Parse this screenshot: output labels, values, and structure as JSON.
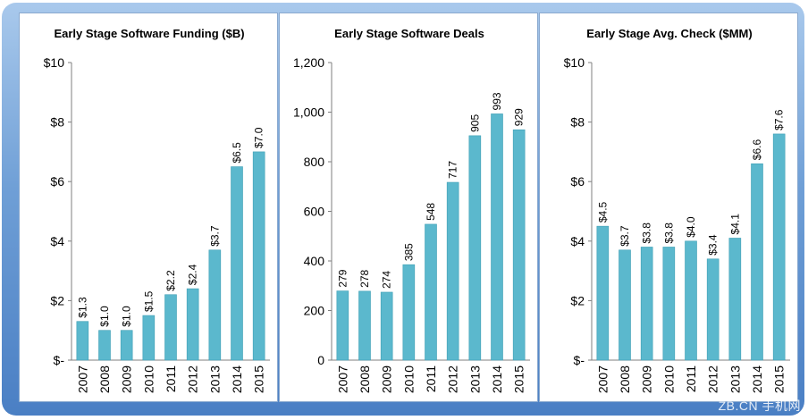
{
  "chart_data": [
    {
      "type": "bar",
      "title": "Early Stage Software Funding ($B)",
      "categories": [
        "2007",
        "2008",
        "2009",
        "2010",
        "2011",
        "2012",
        "2013",
        "2014",
        "2015"
      ],
      "values": [
        1.3,
        1.0,
        1.0,
        1.5,
        2.2,
        2.4,
        3.7,
        6.5,
        7.0
      ],
      "labels": [
        "$1.3",
        "$1.0",
        "$1.0",
        "$1.5",
        "$2.2",
        "$2.4",
        "$3.7",
        "$6.5",
        "$7.0"
      ],
      "ylim": [
        0,
        10
      ],
      "yticks": [
        0,
        2,
        4,
        6,
        8,
        10
      ],
      "ytick_labels": [
        "$-",
        "$2",
        "$4",
        "$6",
        "$8",
        "$10"
      ],
      "grid": false,
      "bar_color": "#5bb8cd"
    },
    {
      "type": "bar",
      "title": "Early Stage Software Deals",
      "categories": [
        "2007",
        "2008",
        "2009",
        "2010",
        "2011",
        "2012",
        "2013",
        "2014",
        "2015"
      ],
      "values": [
        279,
        278,
        274,
        385,
        548,
        717,
        905,
        993,
        929
      ],
      "labels": [
        "279",
        "278",
        "274",
        "385",
        "548",
        "717",
        "905",
        "993",
        "929"
      ],
      "ylim": [
        0,
        1200
      ],
      "yticks": [
        0,
        200,
        400,
        600,
        800,
        1000,
        1200
      ],
      "ytick_labels": [
        "0",
        "200",
        "400",
        "600",
        "800",
        "1,000",
        "1,200"
      ],
      "grid": false,
      "bar_color": "#5bb8cd"
    },
    {
      "type": "bar",
      "title": "Early Stage Avg. Check ($MM)",
      "categories": [
        "2007",
        "2008",
        "2009",
        "2010",
        "2011",
        "2012",
        "2013",
        "2014",
        "2015"
      ],
      "values": [
        4.5,
        3.7,
        3.8,
        3.8,
        4.0,
        3.4,
        4.1,
        6.6,
        7.6
      ],
      "labels": [
        "$4.5",
        "$3.7",
        "$3.8",
        "$3.8",
        "$4.0",
        "$3.4",
        "$4.1",
        "$6.6",
        "$7.6"
      ],
      "ylim": [
        0,
        10
      ],
      "yticks": [
        0,
        2,
        4,
        6,
        8,
        10
      ],
      "ytick_labels": [
        "$-",
        "$2",
        "$4",
        "$6",
        "$8",
        "$10"
      ],
      "grid": false,
      "bar_color": "#5bb8cd"
    }
  ],
  "watermark": "ZB.CN 手机网"
}
